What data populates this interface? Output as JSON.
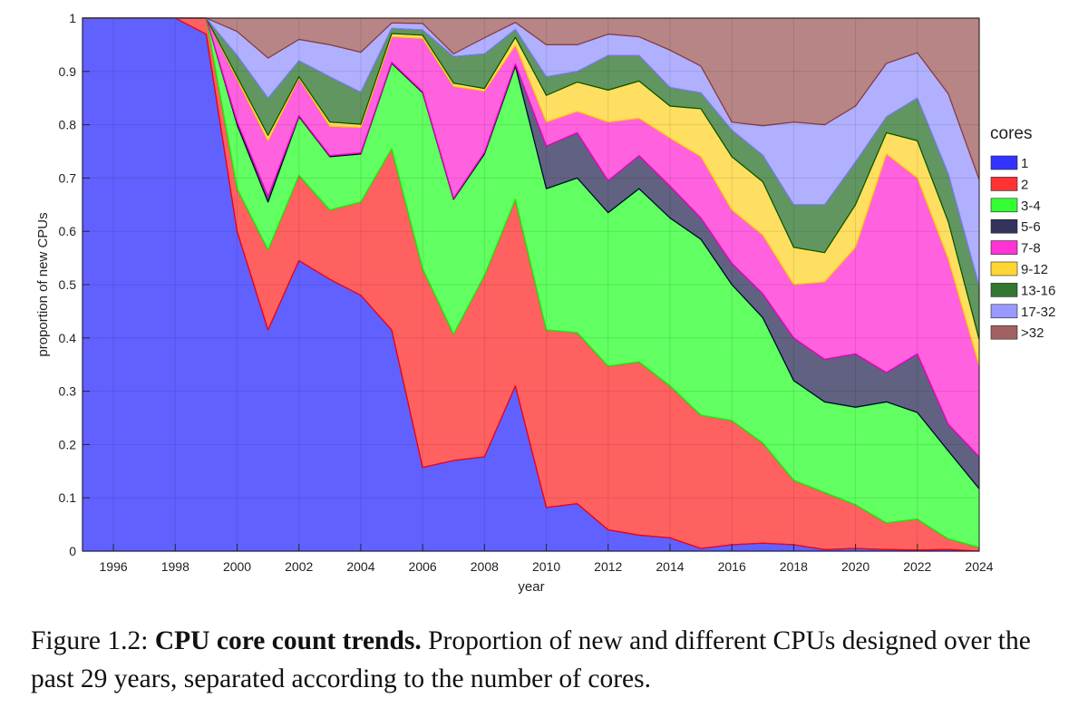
{
  "chart_data": {
    "type": "area",
    "stacked": true,
    "xlabel": "year",
    "ylabel": "proportion of new CPUs",
    "xlim": [
      1995,
      2024
    ],
    "ylim": [
      0,
      1
    ],
    "x_ticks": [
      "1996",
      "1998",
      "2000",
      "2002",
      "2004",
      "2006",
      "2008",
      "2010",
      "2012",
      "2014",
      "2016",
      "2018",
      "2020",
      "2022",
      "2024"
    ],
    "y_ticks": [
      "0",
      "0.1",
      "0.2",
      "0.3",
      "0.4",
      "0.5",
      "0.6",
      "0.7",
      "0.8",
      "0.9",
      "1"
    ],
    "grid": true,
    "legend_title": "cores",
    "legend_position": "right",
    "x": [
      1995,
      1996,
      1997,
      1998,
      1999,
      2000,
      2001,
      2002,
      2003,
      2004,
      2005,
      2006,
      2007,
      2008,
      2009,
      2010,
      2011,
      2012,
      2013,
      2014,
      2015,
      2016,
      2017,
      2018,
      2019,
      2020,
      2021,
      2022,
      2023,
      2024
    ],
    "series": [
      {
        "name": "1",
        "color": "#0000ff",
        "values": [
          1,
          1,
          1,
          1,
          0.97,
          0.6,
          0.415,
          0.545,
          0.51,
          0.48,
          0.415,
          0.157,
          0.17,
          0.177,
          0.31,
          0.082,
          0.089,
          0.04,
          0.03,
          0.025,
          0.005,
          0.012,
          0.015,
          0.012,
          0.003,
          0.005,
          0.003,
          0.002,
          0.003,
          0
        ]
      },
      {
        "name": "2",
        "color": "#ff0000",
        "values": [
          0,
          0,
          0,
          0,
          0.03,
          0.08,
          0.15,
          0.16,
          0.13,
          0.175,
          0.34,
          0.373,
          0.237,
          0.34,
          0.35,
          0.333,
          0.321,
          0.307,
          0.325,
          0.285,
          0.25,
          0.233,
          0.188,
          0.121,
          0.107,
          0.082,
          0.05,
          0.058,
          0.02,
          0.007
        ]
      },
      {
        "name": "3-4",
        "color": "#00ff00",
        "values": [
          0,
          0,
          0,
          0,
          0,
          0.12,
          0.09,
          0.11,
          0.1,
          0.09,
          0.16,
          0.33,
          0.253,
          0.228,
          0.25,
          0.265,
          0.29,
          0.288,
          0.325,
          0.315,
          0.33,
          0.255,
          0.235,
          0.187,
          0.17,
          0.183,
          0.227,
          0.2,
          0.165,
          0.11
        ]
      },
      {
        "name": "5-6",
        "color": "#000033",
        "values": [
          0,
          0,
          0,
          0,
          0,
          0.005,
          0.01,
          0.002,
          0.002,
          0.002,
          0.002,
          0.002,
          0.002,
          0.003,
          0.004,
          0.08,
          0.085,
          0.06,
          0.062,
          0.06,
          0.04,
          0.04,
          0.045,
          0.08,
          0.08,
          0.1,
          0.055,
          0.11,
          0.05,
          0.06
        ]
      },
      {
        "name": "7-8",
        "color": "#ff00cc",
        "values": [
          0,
          0,
          0,
          0,
          0,
          0.08,
          0.105,
          0.07,
          0.055,
          0.048,
          0.048,
          0.1,
          0.21,
          0.115,
          0.035,
          0.045,
          0.04,
          0.11,
          0.07,
          0.09,
          0.115,
          0.1,
          0.11,
          0.1,
          0.145,
          0.2,
          0.41,
          0.33,
          0.31,
          0.17
        ]
      },
      {
        "name": "9-12",
        "color": "#ffcc00",
        "values": [
          0,
          0,
          0,
          0,
          0,
          0.005,
          0.01,
          0.003,
          0.008,
          0.006,
          0.006,
          0.006,
          0.006,
          0.005,
          0.015,
          0.05,
          0.055,
          0.06,
          0.07,
          0.06,
          0.09,
          0.1,
          0.1,
          0.07,
          0.055,
          0.08,
          0.04,
          0.07,
          0.07,
          0.05
        ]
      },
      {
        "name": "13-16",
        "color": "#005500",
        "values": [
          0,
          0,
          0,
          0,
          0,
          0.04,
          0.07,
          0.03,
          0.085,
          0.06,
          0.01,
          0.01,
          0.05,
          0.065,
          0.015,
          0.035,
          0.02,
          0.065,
          0.048,
          0.035,
          0.03,
          0.05,
          0.05,
          0.08,
          0.09,
          0.08,
          0.03,
          0.08,
          0.09,
          0.1
        ]
      },
      {
        "name": "17-32",
        "color": "#8080ff",
        "values": [
          0,
          0,
          0,
          0,
          0,
          0.045,
          0.075,
          0.04,
          0.06,
          0.075,
          0.01,
          0.012,
          0.005,
          0.03,
          0.013,
          0.06,
          0.05,
          0.04,
          0.035,
          0.07,
          0.05,
          0.015,
          0.055,
          0.155,
          0.15,
          0.105,
          0.1,
          0.085,
          0.15,
          0.2
        ]
      },
      {
        "name": ">32",
        "color": "#8b3a3a",
        "values": [
          0,
          0,
          0,
          0,
          0,
          0.025,
          0.075,
          0.04,
          0.05,
          0.064,
          0.009,
          0.01,
          0.067,
          0.037,
          0.008,
          0.05,
          0.05,
          0.03,
          0.035,
          0.06,
          0.09,
          0.195,
          0.202,
          0.195,
          0.2,
          0.165,
          0.085,
          0.065,
          0.142,
          0.303
        ]
      }
    ]
  },
  "caption": {
    "label": "Figure 1.2:",
    "bold": "CPU core count trends.",
    "text": "Proportion of new and different CPUs designed over the past 29 years, separated according to the number of cores."
  }
}
